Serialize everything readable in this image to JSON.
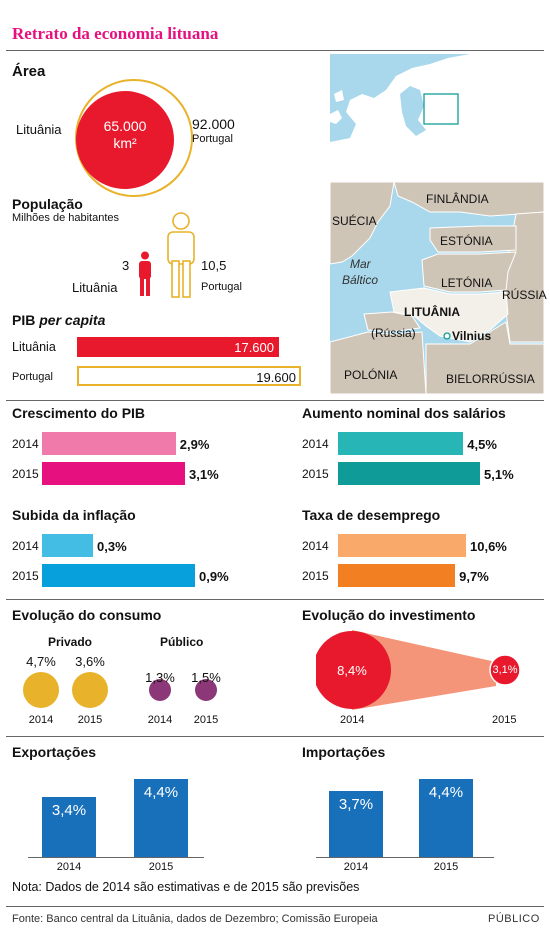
{
  "title": "Retrato da economia lituana",
  "area": {
    "heading": "Área",
    "lithuania_label": "Lituânia",
    "lithuania_value": "65.000",
    "unit": "km²",
    "portugal_value": "92.000",
    "portugal_label": "Portugal"
  },
  "population": {
    "heading": "População",
    "subheading": "Milhões de habitantes",
    "lithuania_value": "3",
    "lithuania_label": "Lituânia",
    "portugal_value": "10,5",
    "portugal_label": "Portugal"
  },
  "gdp_per_capita": {
    "heading_main": "PIB ",
    "heading_italic": "per capita",
    "lithuania_label": "Lituânia",
    "lithuania_value": "17.600",
    "portugal_label": "Portugal",
    "portugal_value": "19.600"
  },
  "map": {
    "countries": [
      "FINLÂNDIA",
      "SUÉCIA",
      "ESTÓNIA",
      "LETÓNIA",
      "RÚSSIA",
      "LITUÂNIA",
      "(Rússia)",
      "POLÓNIA",
      "BIELORRÚSSIA"
    ],
    "sea_line1": "Mar",
    "sea_line2": "Báltico",
    "capital": "Vilnius"
  },
  "colors": {
    "red": "#e8192c",
    "gold": "#e8b22a",
    "pink_light": "#f07aaa",
    "pink": "#e6117f",
    "cyan_light": "#44bde5",
    "cyan": "#08a0dc",
    "teal_light": "#27b5b5",
    "teal": "#0f9c98",
    "orange_light": "#f9a96a",
    "orange": "#f28023",
    "purple": "#8c3777",
    "salmon": "#f4957a",
    "blue": "#1870bb"
  },
  "chart_data": [
    {
      "type": "bar",
      "title": "Crescimento do PIB",
      "categories": [
        "2014",
        "2015"
      ],
      "values": [
        2.9,
        3.1
      ],
      "labels": [
        "2,9%",
        "3,1%"
      ]
    },
    {
      "type": "bar",
      "title": "Aumento nominal dos salários",
      "categories": [
        "2014",
        "2015"
      ],
      "values": [
        4.5,
        5.1
      ],
      "labels": [
        "4,5%",
        "5,1%"
      ]
    },
    {
      "type": "bar",
      "title": "Subida da inflação",
      "categories": [
        "2014",
        "2015"
      ],
      "values": [
        0.3,
        0.9
      ],
      "labels": [
        "0,3%",
        "0,9%"
      ]
    },
    {
      "type": "bar",
      "title": "Taxa de desemprego",
      "categories": [
        "2014",
        "2015"
      ],
      "values": [
        10.6,
        9.7
      ],
      "labels": [
        "10,6%",
        "9,7%"
      ]
    },
    {
      "type": "bubble",
      "title": "Evolução do consumo",
      "series": [
        {
          "name": "Privado",
          "values": [
            4.7,
            3.6
          ],
          "labels": [
            "4,7%",
            "3,6%"
          ]
        },
        {
          "name": "Público",
          "values": [
            1.3,
            1.5
          ],
          "labels": [
            "1,3%",
            "1,5%"
          ]
        }
      ],
      "categories": [
        "2014",
        "2015"
      ]
    },
    {
      "type": "bubble",
      "title": "Evolução do investimento",
      "categories": [
        "2014",
        "2015"
      ],
      "values": [
        8.4,
        3.1
      ],
      "labels": [
        "8,4%",
        "3,1%"
      ]
    },
    {
      "type": "bar",
      "title": "Exportações",
      "categories": [
        "2014",
        "2015"
      ],
      "values": [
        3.4,
        4.4
      ],
      "labels": [
        "3,4%",
        "4,4%"
      ]
    },
    {
      "type": "bar",
      "title": "Importações",
      "categories": [
        "2014",
        "2015"
      ],
      "values": [
        3.7,
        4.4
      ],
      "labels": [
        "3,7%",
        "4,4%"
      ]
    }
  ],
  "note": "Nota: Dados de 2014 são estimativas e de 2015 são previsões",
  "source": "Fonte: Banco central da Lituânia, dados de Dezembro; Comissão Europeia",
  "brand": "PÚBLICO"
}
